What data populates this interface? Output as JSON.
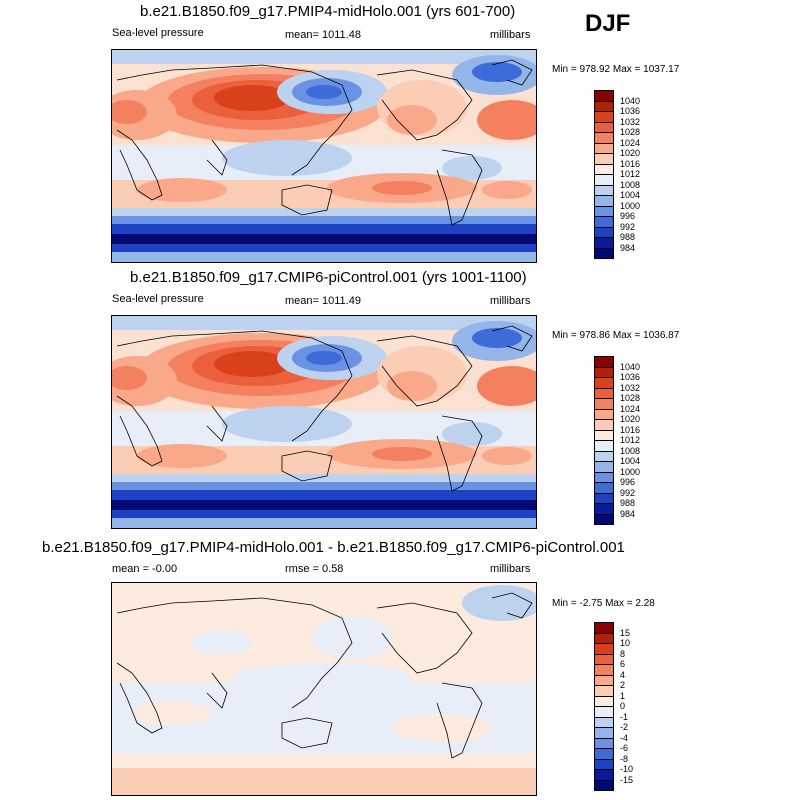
{
  "season": "DJF",
  "panels": [
    {
      "title": "b.e21.B1850.f09_g17.PMIP4-midHolo.001 (yrs 601-700)",
      "left_label": "Sea-level pressure",
      "center_label": "mean= 1011.48",
      "units": "millibars",
      "minmax": "Min = 978.92 Max = 1037.17",
      "levels": [
        "1040",
        "1036",
        "1032",
        "1028",
        "1024",
        "1020",
        "1016",
        "1012",
        "1008",
        "1004",
        "1000",
        "996",
        "992",
        "988",
        "984"
      ],
      "colors": [
        "#8b0000",
        "#b3200a",
        "#d8411c",
        "#ea5f3c",
        "#f48060",
        "#f9a989",
        "#fccdb5",
        "#fdebdf",
        "#e8eef8",
        "#bcd2ef",
        "#93b5ea",
        "#6992e4",
        "#3d6bd8",
        "#1f41c4",
        "#0b1a9a",
        "#000a75"
      ]
    },
    {
      "title": "b.e21.B1850.f09_g17.CMIP6-piControl.001 (yrs 1001-1100)",
      "left_label": "Sea-level pressure",
      "center_label": "mean= 1011.49",
      "units": "millibars",
      "minmax": "Min = 978.86 Max = 1036.87",
      "levels": [
        "1040",
        "1036",
        "1032",
        "1028",
        "1024",
        "1020",
        "1016",
        "1012",
        "1008",
        "1004",
        "1000",
        "996",
        "992",
        "988",
        "984"
      ],
      "colors": [
        "#8b0000",
        "#b3200a",
        "#d8411c",
        "#ea5f3c",
        "#f48060",
        "#f9a989",
        "#fccdb5",
        "#fdebdf",
        "#e8eef8",
        "#bcd2ef",
        "#93b5ea",
        "#6992e4",
        "#3d6bd8",
        "#1f41c4",
        "#0b1a9a",
        "#000a75"
      ]
    },
    {
      "title": "b.e21.B1850.f09_g17.PMIP4-midHolo.001 - b.e21.B1850.f09_g17.CMIP6-piControl.001",
      "left_label": "mean =  -0.00",
      "center_label": "rmse =   0.58",
      "units": "millibars",
      "minmax": "Min =  -2.75 Max =   2.28",
      "levels": [
        "15",
        "10",
        "8",
        "6",
        "4",
        "2",
        "1",
        "0",
        "-1",
        "-2",
        "-4",
        "-6",
        "-8",
        "-10",
        "-15"
      ],
      "colors": [
        "#8b0000",
        "#b3200a",
        "#d8411c",
        "#ea5f3c",
        "#f48060",
        "#f9a989",
        "#fccdb5",
        "#fdebdf",
        "#e8eef8",
        "#bcd2ef",
        "#93b5ea",
        "#6992e4",
        "#3d6bd8",
        "#1f41c4",
        "#0b1a9a",
        "#000a75"
      ]
    }
  ]
}
